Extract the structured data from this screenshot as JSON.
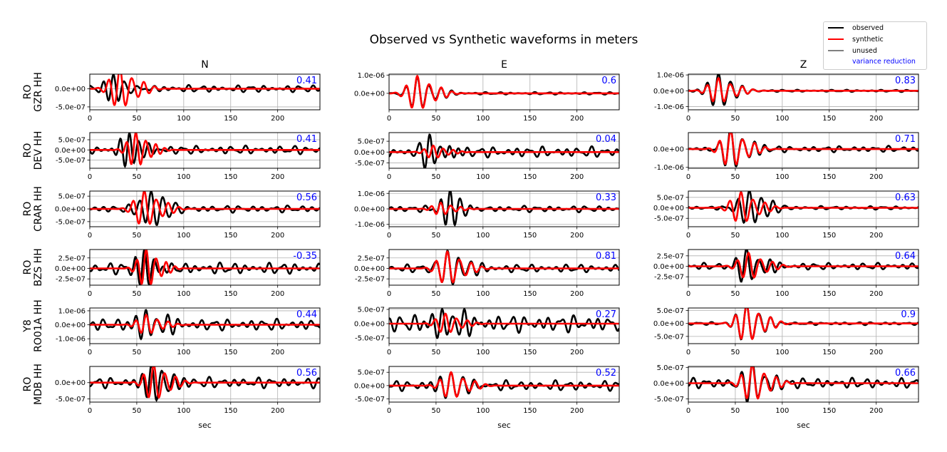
{
  "chart_data": {
    "type": "line",
    "title": "Observed vs Synthetic waveforms in meters",
    "columns": [
      "N",
      "E",
      "Z"
    ],
    "xlabel": "sec",
    "xlim": [
      0,
      245
    ],
    "xticks": [
      0,
      50,
      100,
      150,
      200
    ],
    "grid": true,
    "legend": {
      "placement": "top-right",
      "entries": [
        {
          "label": "observed",
          "color": "#000000"
        },
        {
          "label": "synthetic",
          "color": "#ff0000"
        },
        {
          "label": "unused",
          "color": "#808080"
        },
        {
          "label": "variance reduction",
          "color": "#0000ff"
        }
      ]
    },
    "rows": [
      {
        "station": "RO\nGZR HH",
        "label1": "RO",
        "label2": "GZR HH",
        "panels": [
          {
            "vr": "0.41",
            "ylim": [
              -5.8e-07,
              4e-07
            ],
            "yticks": [
              0,
              -5e-07
            ],
            "yticklabels": [
              "0.0e+00",
              "-5.0e-07"
            ],
            "obs": {
              "t0": 25,
              "amp": 3.5e-07,
              "per": 11,
              "noise": 7e-08
            },
            "syn": {
              "t0": 32,
              "amp": 5.5e-07,
              "per": 12
            }
          },
          {
            "vr": "0.6",
            "ylim": [
              -9e-07,
              1.05e-06
            ],
            "yticks": [
              1e-06,
              0
            ],
            "yticklabels": [
              "1.0e-06",
              "0.0e+00"
            ],
            "obs": {
              "t0": 30,
              "amp": 9e-07,
              "per": 12,
              "noise": 5e-08
            },
            "syn": {
              "t0": 30,
              "amp": 9.5e-07,
              "per": 12
            }
          },
          {
            "vr": "0.83",
            "ylim": [
              -1.2e-06,
              1.05e-06
            ],
            "yticks": [
              1e-06,
              0,
              -1e-06
            ],
            "yticklabels": [
              "1.0e-06",
              "0.0e+00",
              "-1.0e-06"
            ],
            "obs": {
              "t0": 32,
              "amp": 1.1e-06,
              "per": 12,
              "noise": 5e-08
            },
            "syn": {
              "t0": 32,
              "amp": 8e-07,
              "per": 12
            }
          }
        ]
      },
      {
        "station": "RO\nDEV HH",
        "label1": "RO",
        "label2": "DEV HH",
        "panels": [
          {
            "vr": "0.41",
            "ylim": [
              -9e-07,
              8.5e-07
            ],
            "yticks": [
              5e-07,
              0,
              -5e-07
            ],
            "yticklabels": [
              "5.0e-07",
              "0.0e+00",
              "-5.0e-07"
            ],
            "obs": {
              "t0": 42,
              "amp": 8.5e-07,
              "per": 10,
              "noise": 1.5e-07
            },
            "syn": {
              "t0": 49,
              "amp": 8.5e-07,
              "per": 10
            }
          },
          {
            "vr": "0.04",
            "ylim": [
              -7.5e-07,
              9e-07
            ],
            "yticks": [
              5e-07,
              0,
              -5e-07
            ],
            "yticklabels": [
              "5.0e-07",
              "0.0e+00",
              "-5.0e-07"
            ],
            "obs": {
              "t0": 43,
              "amp": 8e-07,
              "per": 10,
              "noise": 1.8e-07
            },
            "syn": {
              "t0": 47,
              "amp": 3e-07,
              "per": 10
            }
          },
          {
            "vr": "0.71",
            "ylim": [
              -1.05e-06,
              9e-07
            ],
            "yticks": [
              0,
              -1e-06
            ],
            "yticklabels": [
              "0.0e+00",
              "-1.0e-06"
            ],
            "obs": {
              "t0": 45,
              "amp": 1e-06,
              "per": 12,
              "noise": 1.2e-07
            },
            "syn": {
              "t0": 45,
              "amp": 1e-06,
              "per": 12
            }
          }
        ]
      },
      {
        "station": "RO\nCRAR HH",
        "label1": "RO",
        "label2": "CRAR HH",
        "panels": [
          {
            "vr": "0.56",
            "ylim": [
              -7e-07,
              7e-07
            ],
            "yticks": [
              5e-07,
              0,
              -5e-07
            ],
            "yticklabels": [
              "5.0e-07",
              "0.0e+00",
              "-5.0e-07"
            ],
            "obs": {
              "t0": 65,
              "amp": 7e-07,
              "per": 12,
              "noise": 1e-07
            },
            "syn": {
              "t0": 58,
              "amp": 7e-07,
              "per": 12
            }
          },
          {
            "vr": "0.33",
            "ylim": [
              -1.15e-06,
              1.15e-06
            ],
            "yticks": [
              1e-06,
              0,
              -1e-06
            ],
            "yticklabels": [
              "1.0e-06",
              "0.0e+00",
              "-1.0e-06"
            ],
            "obs": {
              "t0": 65,
              "amp": 1.1e-06,
              "per": 10,
              "noise": 1.5e-07
            },
            "syn": {
              "t0": 55,
              "amp": 4e-07,
              "per": 10
            }
          },
          {
            "vr": "0.63",
            "ylim": [
              -9e-07,
              8e-07
            ],
            "yticks": [
              5e-07,
              0,
              -5e-07
            ],
            "yticklabels": [
              "5.0e-07",
              "0.0e+00",
              "-5.0e-07"
            ],
            "obs": {
              "t0": 65,
              "amp": 8.5e-07,
              "per": 12,
              "noise": 6e-08
            },
            "syn": {
              "t0": 56,
              "amp": 7.5e-07,
              "per": 12
            }
          }
        ]
      },
      {
        "station": "RO\nBZS HH",
        "label1": "RO",
        "label2": "BZS HH",
        "panels": [
          {
            "vr": "-0.35",
            "ylim": [
              -4e-07,
              4.5e-07
            ],
            "yticks": [
              2.5e-07,
              0,
              -2.5e-07
            ],
            "yticklabels": [
              "2.5e-07",
              "0.0e+00",
              "-2.5e-07"
            ],
            "obs": {
              "t0": 58,
              "amp": 4e-07,
              "per": 10,
              "noise": 1e-07
            },
            "syn": {
              "t0": 60,
              "amp": 4.5e-07,
              "per": 10
            }
          },
          {
            "vr": "0.81",
            "ylim": [
              -4e-07,
              4.5e-07
            ],
            "yticks": [
              2.5e-07,
              0,
              -2.5e-07
            ],
            "yticklabels": [
              "2.5e-07",
              "0.0e+00",
              "-2.5e-07"
            ],
            "obs": {
              "t0": 62,
              "amp": 4.3e-07,
              "per": 12,
              "noise": 7e-08
            },
            "syn": {
              "t0": 62,
              "amp": 4e-07,
              "per": 12
            }
          },
          {
            "vr": "0.64",
            "ylim": [
              -4.5e-07,
              4e-07
            ],
            "yticks": [
              2.5e-07,
              0,
              -2.5e-07
            ],
            "yticklabels": [
              "2.5e-07",
              "0.0e+00",
              "-2.5e-07"
            ],
            "obs": {
              "t0": 62,
              "amp": 4.3e-07,
              "per": 12,
              "noise": 6e-08
            },
            "syn": {
              "t0": 64,
              "amp": 3.2e-07,
              "per": 12
            }
          }
        ]
      },
      {
        "station": "Y8\nRO01A HH",
        "label1": "Y8",
        "label2": "RO01A HH",
        "panels": [
          {
            "vr": "0.44",
            "ylim": [
              -1.35e-06,
              1.2e-06
            ],
            "yticks": [
              1e-06,
              0,
              -1e-06
            ],
            "yticklabels": [
              "1.0e-06",
              "0.0e+00",
              "-1.0e-06"
            ],
            "obs": {
              "t0": 60,
              "amp": 1.25e-06,
              "per": 11,
              "noise": 3e-07
            },
            "syn": {
              "t0": 60,
              "amp": 7e-07,
              "per": 11
            }
          },
          {
            "vr": "0.27",
            "ylim": [
              -7e-07,
              5.5e-07
            ],
            "yticks": [
              5e-07,
              0,
              -5e-07
            ],
            "yticklabels": [
              "5.0e-07",
              "0.0e+00",
              "-5.0e-07"
            ],
            "obs": {
              "t0": 57,
              "amp": 6.5e-07,
              "per": 11,
              "noise": 2.2e-07
            },
            "syn": {
              "t0": 60,
              "amp": 3.5e-07,
              "per": 11
            }
          },
          {
            "vr": "0.9",
            "ylim": [
              -7.8e-07,
              6e-07
            ],
            "yticks": [
              5e-07,
              0,
              -5e-07
            ],
            "yticklabels": [
              "5.0e-07",
              "0.0e+00",
              "-5.0e-07"
            ],
            "obs": {
              "t0": 62,
              "amp": 7e-07,
              "per": 12,
              "noise": 4e-08
            },
            "syn": {
              "t0": 62,
              "amp": 7.2e-07,
              "per": 12
            }
          }
        ]
      },
      {
        "station": "RO\nMDB HH",
        "label1": "RO",
        "label2": "MDB HH",
        "panels": [
          {
            "vr": "0.56",
            "ylim": [
              -6e-07,
              5e-07
            ],
            "yticks": [
              0,
              -5e-07
            ],
            "yticklabels": [
              "0.0e+00",
              "-5.0e-07"
            ],
            "obs": {
              "t0": 66,
              "amp": 6e-07,
              "per": 11,
              "noise": 1.2e-07
            },
            "syn": {
              "t0": 68,
              "amp": 5.5e-07,
              "per": 11
            }
          },
          {
            "vr": "0.52",
            "ylim": [
              -6.2e-07,
              7.2e-07
            ],
            "yticks": [
              5e-07,
              0,
              -5e-07
            ],
            "yticklabels": [
              "5.0e-07",
              "0.0e+00",
              "-5.0e-07"
            ],
            "obs": {
              "t0": 66,
              "amp": 7e-07,
              "per": 12,
              "noise": 1.4e-07
            },
            "syn": {
              "t0": 66,
              "amp": 5e-07,
              "per": 12
            }
          },
          {
            "vr": "0.66",
            "ylim": [
              -6e-07,
              5.3e-07
            ],
            "yticks": [
              5e-07,
              0,
              -5e-07
            ],
            "yticklabels": [
              "5.0e-07",
              "0.0e+00",
              "-5.0e-07"
            ],
            "obs": {
              "t0": 68,
              "amp": 5.5e-07,
              "per": 12,
              "noise": 1.2e-07
            },
            "syn": {
              "t0": 68,
              "amp": 5.8e-07,
              "per": 12
            }
          }
        ]
      }
    ]
  }
}
